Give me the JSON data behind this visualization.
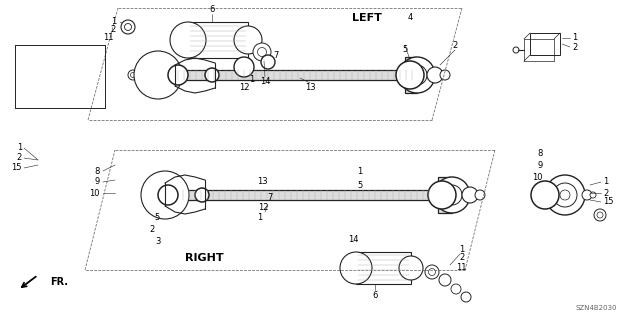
{
  "bg_color": "#ffffff",
  "fig_width": 6.4,
  "fig_height": 3.19,
  "dpi": 100,
  "left_label": "LEFT",
  "right_label": "RIGHT",
  "fr_label": "FR.",
  "part_number": "SZN4B2030"
}
